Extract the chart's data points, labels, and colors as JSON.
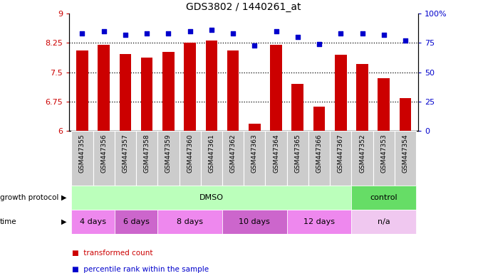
{
  "title": "GDS3802 / 1440261_at",
  "samples": [
    "GSM447355",
    "GSM447356",
    "GSM447357",
    "GSM447358",
    "GSM447359",
    "GSM447360",
    "GSM447361",
    "GSM447362",
    "GSM447363",
    "GSM447364",
    "GSM447365",
    "GSM447366",
    "GSM447367",
    "GSM447352",
    "GSM447353",
    "GSM447354"
  ],
  "bar_values": [
    8.05,
    8.2,
    7.97,
    7.88,
    8.02,
    8.25,
    8.32,
    8.05,
    6.18,
    8.2,
    7.2,
    6.62,
    7.95,
    7.72,
    7.35,
    6.85
  ],
  "dot_values": [
    83,
    85,
    82,
    83,
    83,
    85,
    86,
    83,
    73,
    85,
    80,
    74,
    83,
    83,
    82,
    77
  ],
  "bar_color": "#cc0000",
  "dot_color": "#0000cc",
  "ylim_left": [
    6,
    9
  ],
  "ylim_right": [
    0,
    100
  ],
  "yticks_left": [
    6,
    6.75,
    7.5,
    8.25,
    9
  ],
  "yticks_right": [
    0,
    25,
    50,
    75,
    100
  ],
  "ytick_labels_left": [
    "6",
    "6.75",
    "7.5",
    "8.25",
    "9"
  ],
  "ytick_labels_right": [
    "0",
    "25",
    "50",
    "75",
    "100%"
  ],
  "hlines": [
    6.75,
    7.5,
    8.25
  ],
  "growth_protocol_label": "growth protocol",
  "time_label": "time",
  "proto_groups": [
    {
      "label": "DMSO",
      "start": 0,
      "end": 12,
      "color": "#bbffbb"
    },
    {
      "label": "control",
      "start": 13,
      "end": 15,
      "color": "#66dd66"
    }
  ],
  "time_groups": [
    {
      "label": "4 days",
      "start": 0,
      "end": 1,
      "color": "#ee88ee"
    },
    {
      "label": "6 days",
      "start": 2,
      "end": 3,
      "color": "#cc66cc"
    },
    {
      "label": "8 days",
      "start": 4,
      "end": 6,
      "color": "#ee88ee"
    },
    {
      "label": "10 days",
      "start": 7,
      "end": 9,
      "color": "#cc66cc"
    },
    {
      "label": "12 days",
      "start": 10,
      "end": 12,
      "color": "#ee88ee"
    },
    {
      "label": "n/a",
      "start": 13,
      "end": 15,
      "color": "#f0c8f0"
    }
  ],
  "legend_bar_label": "transformed count",
  "legend_dot_label": "percentile rank within the sample",
  "bar_color_legend": "#cc0000",
  "dot_color_legend": "#0000cc",
  "tick_label_bg": "#cccccc",
  "background_color": "#ffffff"
}
